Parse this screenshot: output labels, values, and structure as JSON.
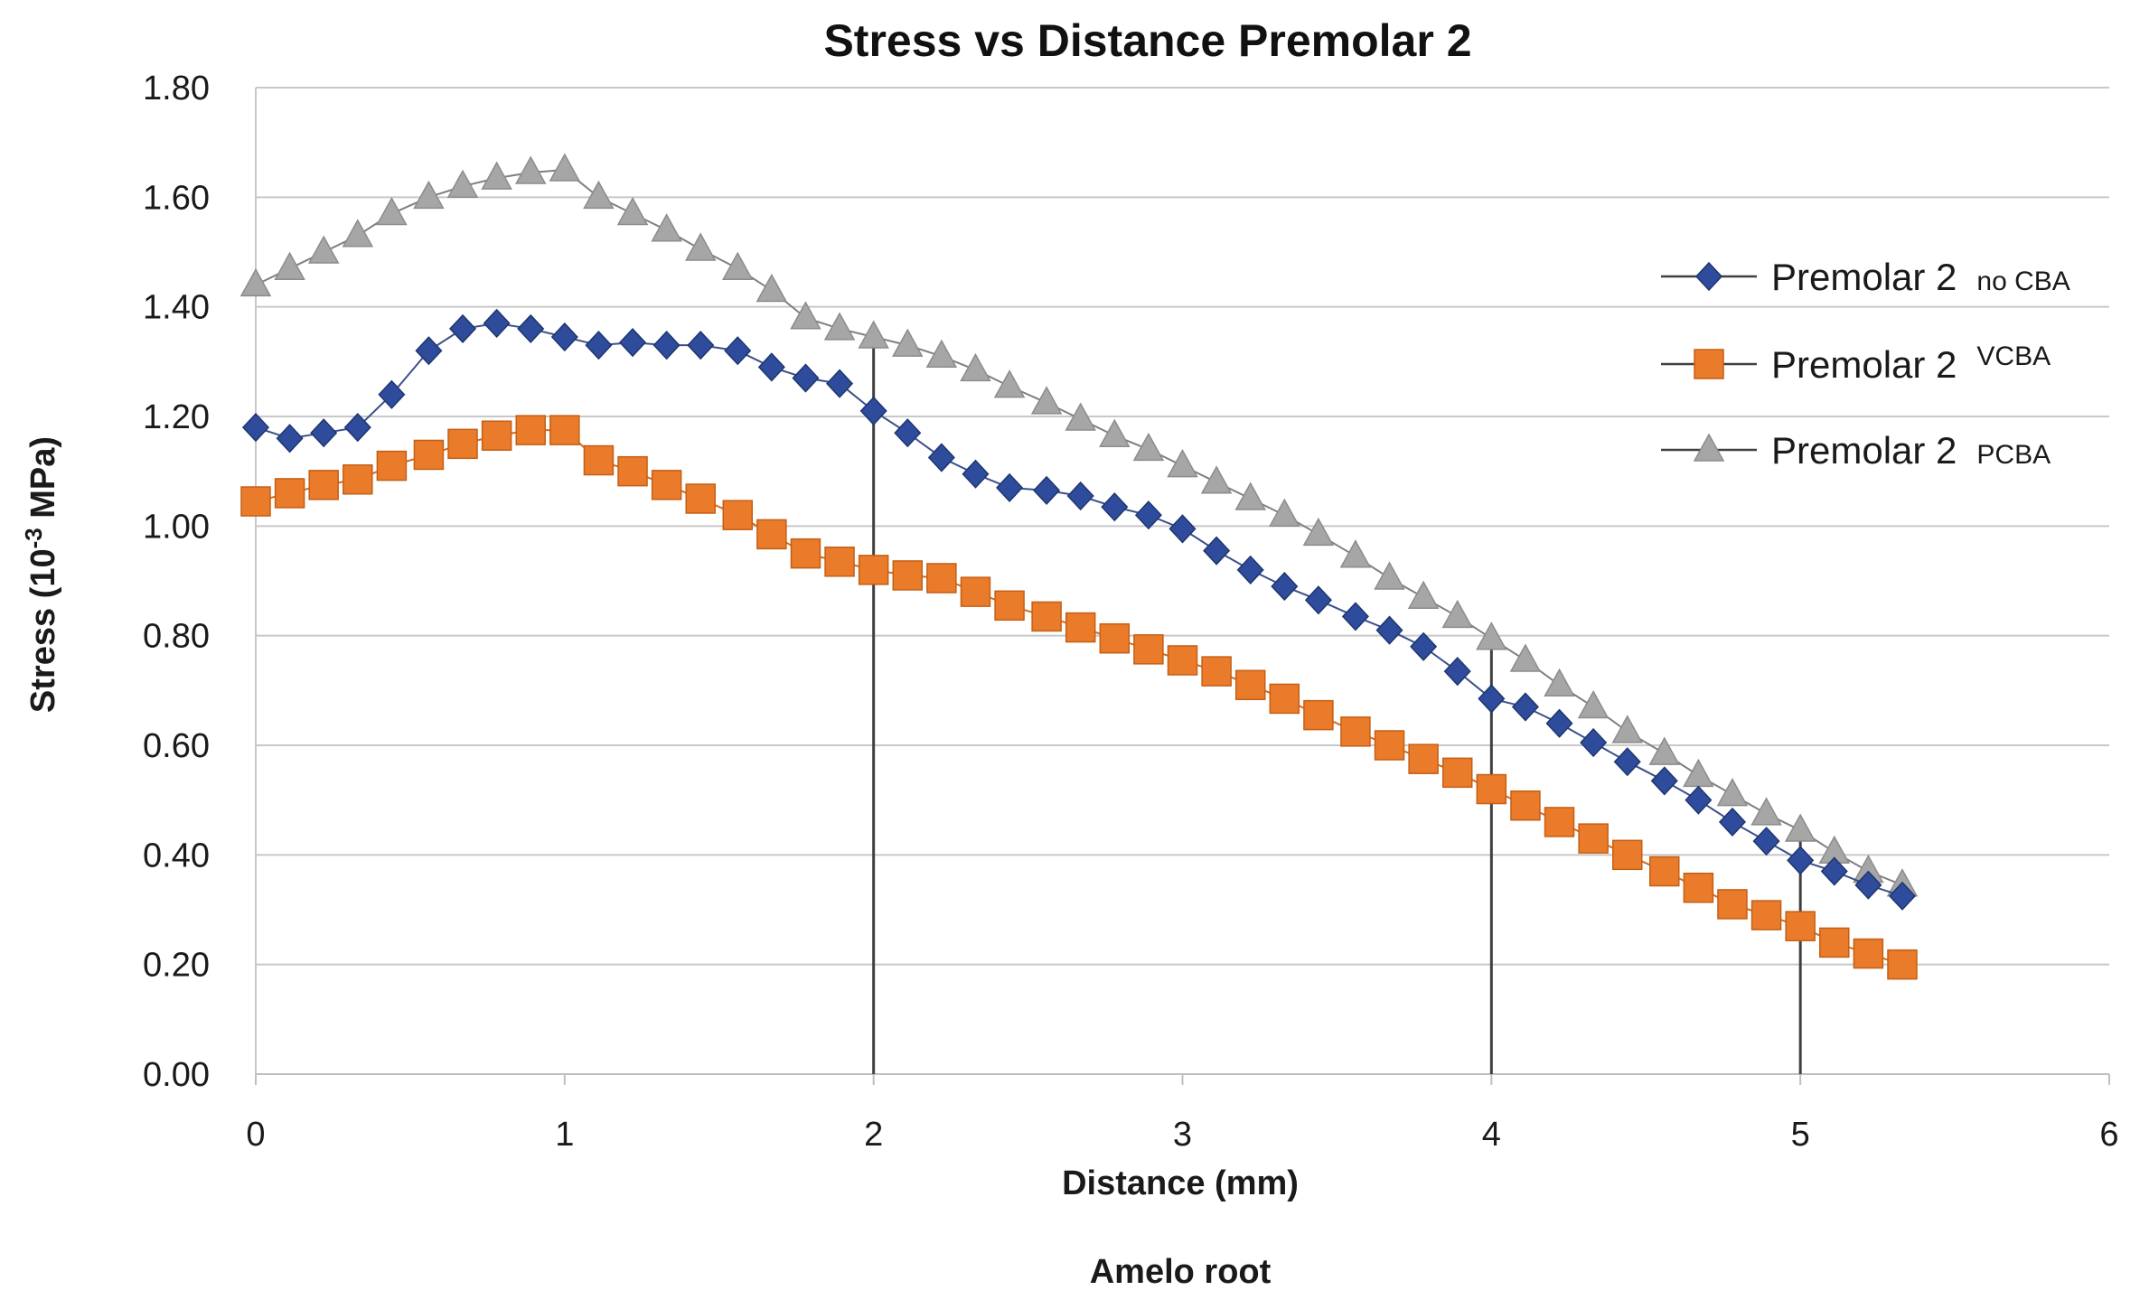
{
  "chart_data": {
    "type": "line",
    "title": "Stress vs Distance  Premolar 2",
    "xlabel": "Distance (mm)",
    "ylabel_prefix": "Stress (10",
    "ylabel_sup": "-3",
    "ylabel_suffix": " MPa)",
    "footer_label": "Amelo root",
    "xlim": [
      0,
      6
    ],
    "ylim": [
      0,
      1.8
    ],
    "x_ticks": [
      "0",
      "1",
      "2",
      "3",
      "4",
      "5",
      "6"
    ],
    "y_ticks": [
      "0.00",
      "0.20",
      "0.40",
      "0.60",
      "0.80",
      "1.00",
      "1.20",
      "1.40",
      "1.60",
      "1.80"
    ],
    "grid": "horizontal",
    "legend_position": "right",
    "x": [
      0,
      0.11,
      0.22,
      0.33,
      0.44,
      0.56,
      0.67,
      0.78,
      0.89,
      1.0,
      1.11,
      1.22,
      1.33,
      1.44,
      1.56,
      1.67,
      1.78,
      1.89,
      2.0,
      2.11,
      2.22,
      2.33,
      2.44,
      2.56,
      2.67,
      2.78,
      2.89,
      3.0,
      3.11,
      3.22,
      3.33,
      3.44,
      3.56,
      3.67,
      3.78,
      3.89,
      4.0,
      4.11,
      4.22,
      4.33,
      4.44,
      4.56,
      4.67,
      4.78,
      4.89,
      5.0,
      5.11,
      5.22,
      5.33
    ],
    "series": [
      {
        "name": "Premolar 2",
        "name_sub": "no CBA",
        "sub_position": "sub",
        "color": "#2E4C9B",
        "marker": "diamond",
        "values": [
          1.18,
          1.16,
          1.17,
          1.18,
          1.24,
          1.32,
          1.36,
          1.37,
          1.36,
          1.345,
          1.33,
          1.335,
          1.33,
          1.33,
          1.32,
          1.29,
          1.27,
          1.26,
          1.21,
          1.17,
          1.125,
          1.095,
          1.07,
          1.065,
          1.055,
          1.035,
          1.02,
          0.995,
          0.955,
          0.92,
          0.89,
          0.865,
          0.835,
          0.81,
          0.78,
          0.735,
          0.685,
          0.67,
          0.64,
          0.605,
          0.57,
          0.535,
          0.5,
          0.46,
          0.425,
          0.39,
          0.37,
          0.345,
          0.325
        ]
      },
      {
        "name": "Premolar 2",
        "name_sub": "VCBA",
        "sub_position": "super",
        "color": "#E97B2A",
        "marker": "square",
        "values": [
          1.045,
          1.06,
          1.075,
          1.085,
          1.11,
          1.13,
          1.15,
          1.165,
          1.175,
          1.175,
          1.12,
          1.1,
          1.075,
          1.05,
          1.02,
          0.985,
          0.95,
          0.935,
          0.92,
          0.91,
          0.905,
          0.88,
          0.855,
          0.835,
          0.815,
          0.795,
          0.775,
          0.755,
          0.735,
          0.71,
          0.685,
          0.655,
          0.625,
          0.6,
          0.575,
          0.55,
          0.52,
          0.49,
          0.46,
          0.43,
          0.4,
          0.37,
          0.34,
          0.31,
          0.29,
          0.27,
          0.24,
          0.22,
          0.2
        ]
      },
      {
        "name": "Premolar 2",
        "name_sub": "PCBA",
        "sub_position": "sub",
        "color": "#A6A6A6",
        "marker": "triangle",
        "values": [
          1.44,
          1.47,
          1.5,
          1.53,
          1.57,
          1.6,
          1.62,
          1.635,
          1.645,
          1.65,
          1.6,
          1.57,
          1.54,
          1.505,
          1.47,
          1.43,
          1.38,
          1.36,
          1.345,
          1.33,
          1.31,
          1.285,
          1.255,
          1.225,
          1.195,
          1.165,
          1.14,
          1.11,
          1.08,
          1.05,
          1.02,
          0.985,
          0.945,
          0.905,
          0.87,
          0.835,
          0.795,
          0.755,
          0.71,
          0.67,
          0.625,
          0.585,
          0.545,
          0.51,
          0.475,
          0.445,
          0.405,
          0.37,
          0.345
        ]
      }
    ],
    "reference_lines_x": [
      2.0,
      4.0,
      5.0
    ]
  }
}
